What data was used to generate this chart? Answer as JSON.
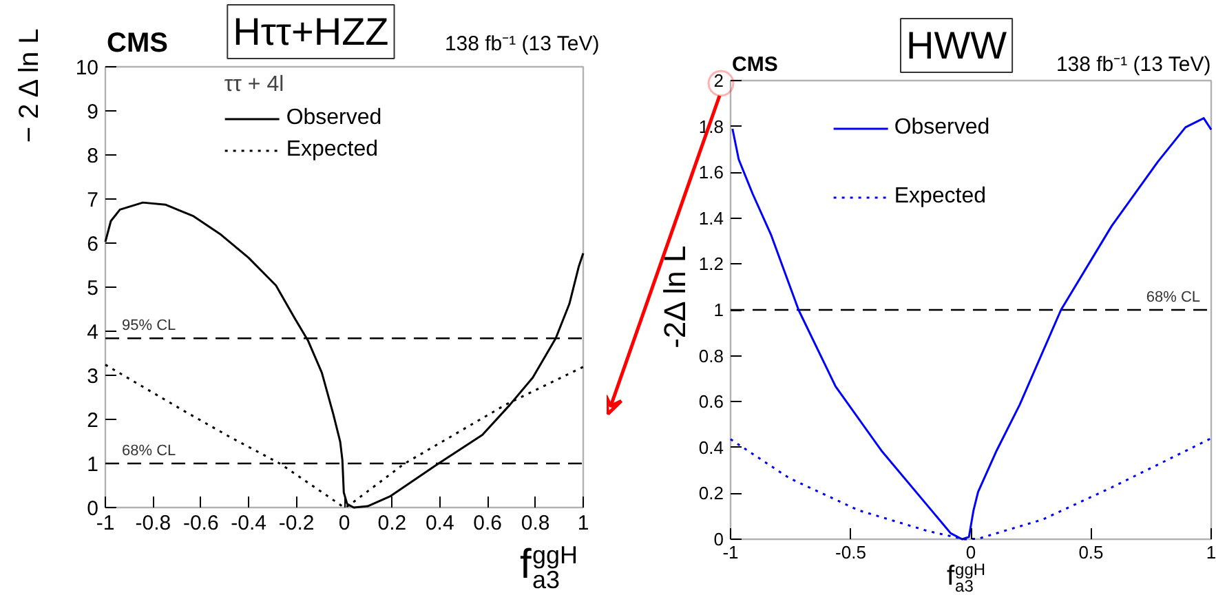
{
  "chart_data": [
    {
      "type": "line",
      "title": "Hττ+HZZ",
      "xlabel": "f$_{a3}$$^{ggH}$",
      "ylabel": "− 2 Δ ln L",
      "legend_title": "ττ + 4l",
      "legend": "top",
      "annotations": [
        "CMS",
        "138 fb⁻¹ (13 TeV)"
      ],
      "xlim": [
        -1,
        1
      ],
      "ylim": [
        0,
        10
      ],
      "xticks": [
        -1,
        -0.8,
        -0.6,
        -0.4,
        -0.2,
        0,
        0.2,
        0.4,
        0.6,
        0.8,
        1
      ],
      "yticks": [
        0,
        1,
        2,
        3,
        4,
        5,
        6,
        7,
        8,
        9,
        10
      ],
      "grid": false,
      "ref_lines": [
        {
          "axis": "y",
          "value": 3.84,
          "label": "95% CL",
          "color": "#000000",
          "line_style": "dashed"
        },
        {
          "axis": "y",
          "value": 1,
          "label": "68% CL",
          "color": "#000000",
          "line_style": "dashed"
        }
      ],
      "series": [
        {
          "name": "Observed",
          "color": "#000000",
          "line_style": "solid",
          "x": [
            -1,
            -0.977,
            -0.939,
            -0.843,
            -0.747,
            -0.631,
            -0.516,
            -0.401,
            -0.286,
            -0.209,
            -0.152,
            -0.094,
            -0.046,
            -0.017,
            -0.008,
            -0.002,
            0.012,
            0.04,
            0.098,
            0.194,
            0.386,
            0.578,
            0.693,
            0.789,
            0.885,
            0.942,
            0.981,
            1.0
          ],
          "values": [
            6.03,
            6.5,
            6.76,
            6.92,
            6.87,
            6.61,
            6.19,
            5.67,
            5.04,
            4.31,
            3.79,
            3.06,
            2.12,
            1.49,
            1.08,
            0.34,
            0.08,
            0.0,
            0.03,
            0.26,
            0.97,
            1.65,
            2.33,
            2.95,
            3.84,
            4.62,
            5.46,
            5.77
          ]
        },
        {
          "name": "Expected",
          "color": "#000000",
          "line_style": "dotted",
          "x": [
            -1,
            -0.67,
            -0.478,
            -0.267,
            -0.008,
            0.0,
            0.02,
            0.25,
            0.674,
            1
          ],
          "values": [
            3.24,
            2.19,
            1.6,
            0.99,
            0.03,
            0.0,
            0.05,
            0.99,
            2.33,
            3.19
          ]
        }
      ]
    },
    {
      "type": "line",
      "title": "HWW",
      "xlabel": "f$_{a3}$$^{ggH}$",
      "ylabel": "-2Δ ln L",
      "legend": "top",
      "annotations": [
        "CMS",
        "138 fb⁻¹ (13 TeV)"
      ],
      "xlim": [
        -1,
        1
      ],
      "ylim": [
        0,
        2
      ],
      "xticks": [
        -1,
        -0.5,
        0,
        0.5,
        1
      ],
      "yticks": [
        0,
        0.2,
        0.4,
        0.6,
        0.8,
        1,
        1.2,
        1.4,
        1.6,
        1.8,
        2
      ],
      "grid": false,
      "ref_lines": [
        {
          "axis": "y",
          "value": 1,
          "label": "68% CL",
          "color": "#000000",
          "line_style": "dashed"
        }
      ],
      "series": [
        {
          "name": "Observed",
          "color": "#0000ff",
          "line_style": "solid",
          "x": [
            -0.992,
            -0.966,
            -0.908,
            -0.831,
            -0.717,
            -0.563,
            -0.372,
            -0.18,
            -0.084,
            -0.036,
            -0.008,
            0.011,
            0.03,
            0.107,
            0.203,
            0.375,
            0.586,
            0.778,
            0.893,
            0.969,
            1.0
          ],
          "values": [
            1.79,
            1.656,
            1.506,
            1.326,
            1.0,
            0.666,
            0.386,
            0.146,
            0.026,
            0.0,
            0.01,
            0.126,
            0.206,
            0.386,
            0.586,
            1.0,
            1.366,
            1.646,
            1.796,
            1.836,
            1.786
          ]
        },
        {
          "name": "Expected",
          "color": "#0000ff",
          "line_style": "dotted",
          "x": [
            -1,
            -0.755,
            -0.467,
            -0.18,
            -0.027,
            0.03,
            0.299,
            0.586,
            1
          ],
          "values": [
            0.436,
            0.266,
            0.126,
            0.036,
            0.0,
            0.002,
            0.086,
            0.226,
            0.44
          ]
        }
      ]
    }
  ]
}
